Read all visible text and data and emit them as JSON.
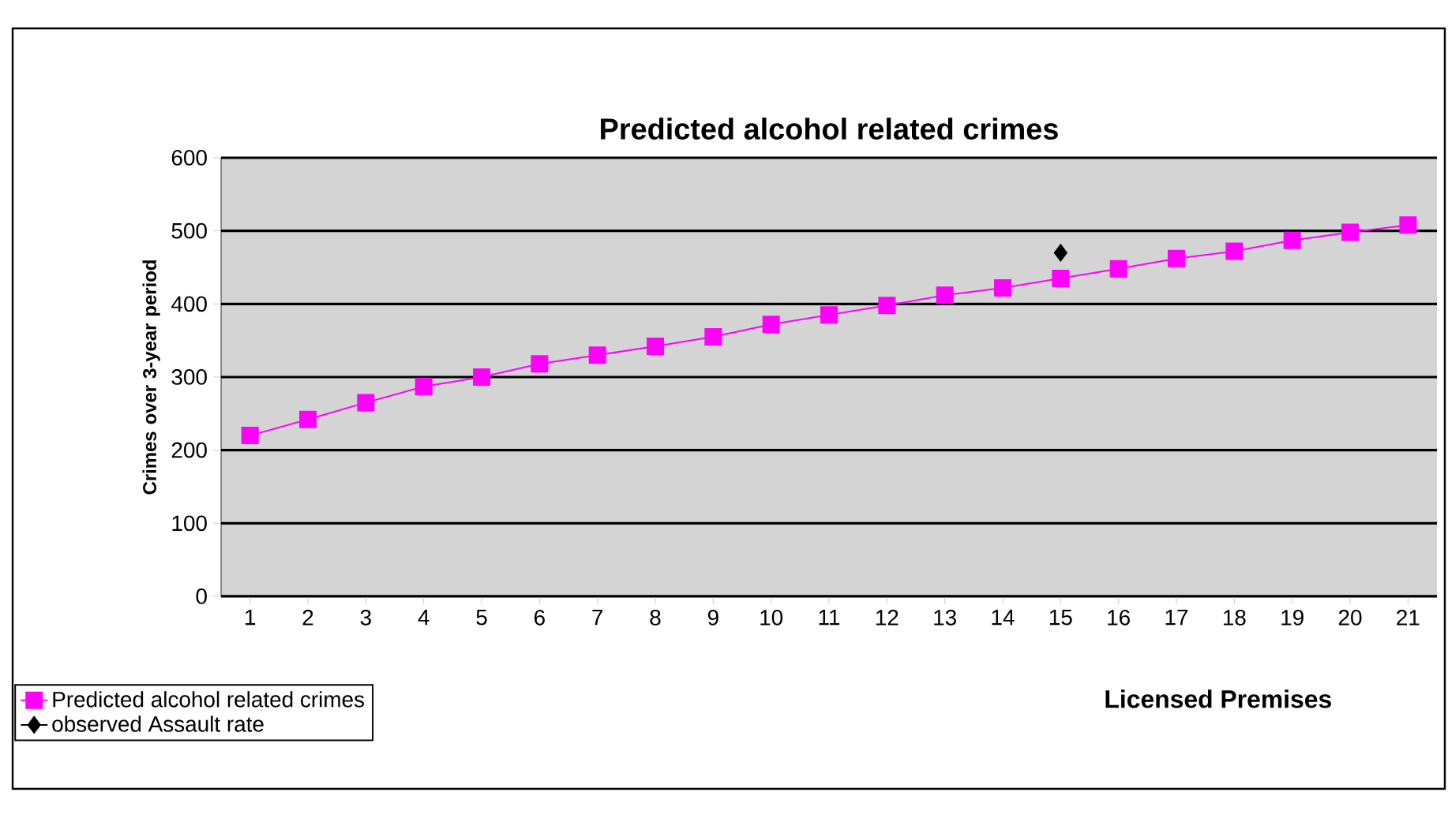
{
  "chart_data": {
    "type": "line",
    "title": "Predicted alcohol related crimes",
    "xlabel": "Licensed Premises",
    "ylabel": "Crimes over 3-year period",
    "categories": [
      "1",
      "2",
      "3",
      "4",
      "5",
      "6",
      "7",
      "8",
      "9",
      "10",
      "11",
      "12",
      "13",
      "14",
      "15",
      "16",
      "17",
      "18",
      "19",
      "20",
      "21"
    ],
    "series": [
      {
        "name": "Predicted alcohol related crimes",
        "color": "#ff00ff",
        "marker": "square",
        "values": [
          220,
          242,
          265,
          287,
          300,
          318,
          330,
          342,
          355,
          372,
          385,
          398,
          412,
          422,
          435,
          448,
          462,
          472,
          487,
          498,
          508
        ]
      },
      {
        "name": "observed Assault rate",
        "color": "#000000",
        "marker": "diamond",
        "values": [
          null,
          null,
          null,
          null,
          null,
          null,
          null,
          null,
          null,
          null,
          null,
          null,
          null,
          null,
          470,
          null,
          null,
          null,
          null,
          null,
          null
        ]
      }
    ],
    "ylim": [
      0,
      600
    ],
    "yticks": [
      0,
      100,
      200,
      300,
      400,
      500,
      600
    ],
    "grid": "y",
    "legend": "bottom left"
  }
}
